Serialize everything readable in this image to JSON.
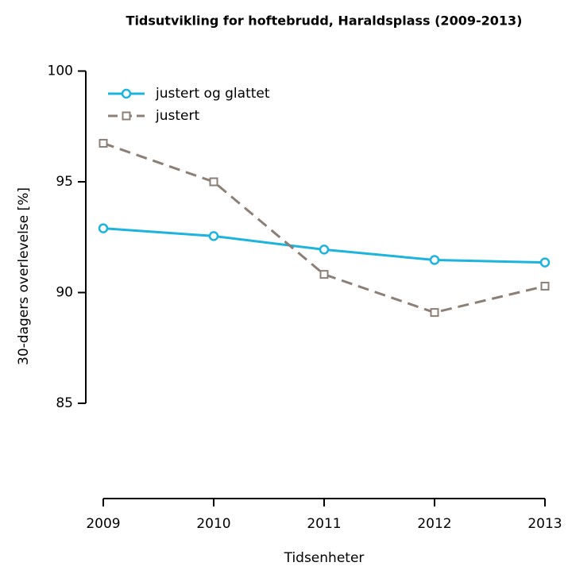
{
  "chart_data": {
    "type": "line",
    "title": "Tidsutvikling for hoftebrudd, Haraldsplass (2009-2013)",
    "x_label": "Tidsenheter",
    "y_label": "30-dagers overlevelse [%]",
    "x": [
      2009,
      2010,
      2011,
      2012,
      2013
    ],
    "series": [
      {
        "name": "justert og glattet",
        "color": "#1cb4df",
        "dash": "solid",
        "marker": "circle",
        "values": [
          92.9,
          92.55,
          91.94,
          91.47,
          91.36
        ]
      },
      {
        "name": "justert",
        "color": "#8c7f76",
        "dash": "dashed",
        "marker": "square",
        "values": [
          96.74,
          95.0,
          90.82,
          89.1,
          90.29
        ]
      }
    ],
    "xlim": [
      2009,
      2013
    ],
    "xticks": [
      2009,
      2010,
      2011,
      2012,
      2013
    ],
    "ylim": [
      80.7,
      101
    ],
    "yticks": [
      85,
      90,
      95,
      100
    ],
    "legend": "top-left",
    "grid": false
  }
}
